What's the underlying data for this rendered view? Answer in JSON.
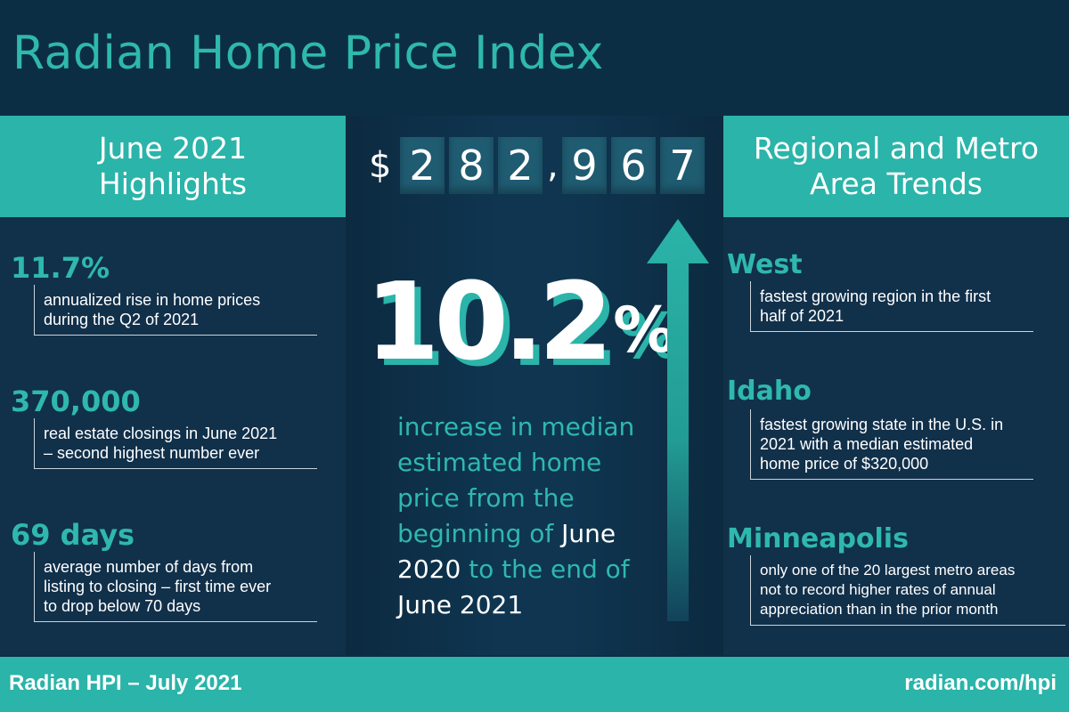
{
  "title": "Radian Home Price Index",
  "highlights": {
    "header_line1": "June 2021",
    "header_line2": "Highlights",
    "items": [
      {
        "value": "11.7%",
        "desc_line1": "annualized rise in home prices",
        "desc_line2": "during the Q2 of 2021"
      },
      {
        "value": "370,000",
        "desc_line1": "real estate closings in June 2021",
        "desc_line2": "– second highest number ever"
      },
      {
        "value": "69 days",
        "desc_line1": "average number of days from",
        "desc_line2": "listing to closing – first time ever",
        "desc_line3": "to drop below 70 days"
      }
    ]
  },
  "center": {
    "price_prefix": "$",
    "digits": [
      "2",
      "8",
      "2",
      "9",
      "6",
      "7"
    ],
    "comma": ",",
    "percent_value": "10.2",
    "percent_sign": "%",
    "desc_part1": "increase in median estimated home price from  the beginning of ",
    "desc_hl1": "June 2020",
    "desc_part2": " to the end of ",
    "desc_hl2": "June 2021"
  },
  "regional": {
    "header_line1": "Regional and Metro",
    "header_line2": "Area Trends",
    "items": [
      {
        "name": "West",
        "desc_line1": "fastest growing region in the first",
        "desc_line2": "half of 2021"
      },
      {
        "name": "Idaho",
        "desc_line1": "fastest growing state in the U.S. in",
        "desc_line2": "2021 with a median estimated",
        "desc_line3": "home price of $320,000"
      },
      {
        "name": "Minneapolis",
        "desc_line1": "only one of the 20 largest metro areas",
        "desc_line2": "not to record higher rates of annual",
        "desc_line3": "appreciation than in the prior month"
      }
    ]
  },
  "footer": {
    "left": "Radian HPI – July 2021",
    "right": "radian.com/hpi"
  },
  "colors": {
    "background": "#0c2e45",
    "accent": "#2bb4a9",
    "text": "#ffffff"
  }
}
